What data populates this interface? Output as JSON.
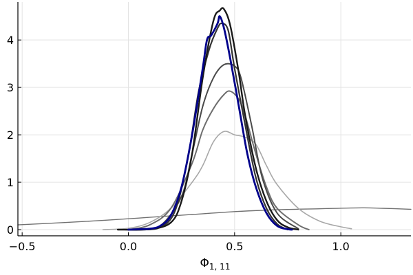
{
  "chart_data": {
    "type": "line",
    "title": "",
    "xlabel": "Φ",
    "xlabel_subscript": "1, 11",
    "ylabel": "",
    "xlim": [
      -0.52,
      1.33
    ],
    "ylim": [
      -0.13,
      4.8
    ],
    "grid": true,
    "legend": "none",
    "x_ticks": [
      {
        "value": -0.5,
        "label": "−0.5"
      },
      {
        "value": 0.0,
        "label": "0.0"
      },
      {
        "value": 0.5,
        "label": "0.5"
      },
      {
        "value": 1.0,
        "label": "1.0"
      }
    ],
    "y_ticks": [
      {
        "value": 0,
        "label": "0"
      },
      {
        "value": 1,
        "label": "1"
      },
      {
        "value": 2,
        "label": "2"
      },
      {
        "value": 3,
        "label": "3"
      },
      {
        "value": 4,
        "label": "4"
      }
    ],
    "series": [
      {
        "color": "#707070",
        "stroke_width": 1.4,
        "points": [
          [
            -0.52,
            0.1
          ],
          [
            -0.3,
            0.15
          ],
          [
            -0.1,
            0.2
          ],
          [
            0.1,
            0.26
          ],
          [
            0.3,
            0.32
          ],
          [
            0.5,
            0.38
          ],
          [
            0.7,
            0.42
          ],
          [
            0.9,
            0.44
          ],
          [
            1.1,
            0.46
          ],
          [
            1.2,
            0.45
          ],
          [
            1.33,
            0.43
          ]
        ]
      },
      {
        "color": "#a8a8a8",
        "stroke_width": 1.6,
        "points": [
          [
            -0.12,
            0.0
          ],
          [
            0.0,
            0.03
          ],
          [
            0.1,
            0.15
          ],
          [
            0.2,
            0.45
          ],
          [
            0.3,
            1.0
          ],
          [
            0.35,
            1.35
          ],
          [
            0.4,
            1.85
          ],
          [
            0.45,
            2.07
          ],
          [
            0.5,
            2.0
          ],
          [
            0.55,
            1.95
          ],
          [
            0.6,
            1.8
          ],
          [
            0.65,
            1.35
          ],
          [
            0.7,
            0.95
          ],
          [
            0.8,
            0.45
          ],
          [
            0.9,
            0.18
          ],
          [
            1.0,
            0.06
          ],
          [
            1.05,
            0.02
          ]
        ]
      },
      {
        "color": "#6e6e6e",
        "stroke_width": 2,
        "points": [
          [
            0.0,
            0.0
          ],
          [
            0.1,
            0.1
          ],
          [
            0.2,
            0.45
          ],
          [
            0.3,
            1.4
          ],
          [
            0.35,
            2.1
          ],
          [
            0.4,
            2.55
          ],
          [
            0.45,
            2.85
          ],
          [
            0.48,
            2.92
          ],
          [
            0.52,
            2.75
          ],
          [
            0.55,
            2.4
          ],
          [
            0.6,
            1.6
          ],
          [
            0.65,
            0.9
          ],
          [
            0.7,
            0.45
          ],
          [
            0.8,
            0.1
          ],
          [
            0.85,
            0.0
          ]
        ]
      },
      {
        "color": "#4a4a4a",
        "stroke_width": 2,
        "points": [
          [
            0.05,
            0.0
          ],
          [
            0.15,
            0.08
          ],
          [
            0.25,
            0.7
          ],
          [
            0.3,
            1.6
          ],
          [
            0.35,
            2.6
          ],
          [
            0.4,
            3.2
          ],
          [
            0.45,
            3.48
          ],
          [
            0.5,
            3.45
          ],
          [
            0.53,
            3.2
          ],
          [
            0.58,
            2.2
          ],
          [
            0.63,
            1.1
          ],
          [
            0.7,
            0.35
          ],
          [
            0.8,
            0.02
          ]
        ]
      },
      {
        "color": "#333333",
        "stroke_width": 2.2,
        "points": [
          [
            0.05,
            0.0
          ],
          [
            0.15,
            0.05
          ],
          [
            0.22,
            0.4
          ],
          [
            0.28,
            1.5
          ],
          [
            0.33,
            2.9
          ],
          [
            0.38,
            3.8
          ],
          [
            0.42,
            4.25
          ],
          [
            0.44,
            4.35
          ],
          [
            0.47,
            4.2
          ],
          [
            0.5,
            3.4
          ],
          [
            0.55,
            2.2
          ],
          [
            0.6,
            1.1
          ],
          [
            0.65,
            0.45
          ],
          [
            0.7,
            0.12
          ],
          [
            0.75,
            0.0
          ]
        ]
      },
      {
        "color": "#1a1a1a",
        "stroke_width": 2.4,
        "points": [
          [
            -0.05,
            0.0
          ],
          [
            0.1,
            0.01
          ],
          [
            0.2,
            0.15
          ],
          [
            0.25,
            0.6
          ],
          [
            0.3,
            1.6
          ],
          [
            0.35,
            3.2
          ],
          [
            0.4,
            4.4
          ],
          [
            0.43,
            4.62
          ],
          [
            0.45,
            4.65
          ],
          [
            0.48,
            4.3
          ],
          [
            0.52,
            3.3
          ],
          [
            0.55,
            2.4
          ],
          [
            0.6,
            1.3
          ],
          [
            0.65,
            0.6
          ],
          [
            0.7,
            0.2
          ],
          [
            0.75,
            0.05
          ],
          [
            0.8,
            0.0
          ]
        ]
      },
      {
        "color": "#00008b",
        "stroke_width": 2.8,
        "points": [
          [
            0.0,
            0.0
          ],
          [
            0.1,
            0.02
          ],
          [
            0.15,
            0.08
          ],
          [
            0.2,
            0.3
          ],
          [
            0.25,
            0.9
          ],
          [
            0.3,
            2.0
          ],
          [
            0.35,
            3.4
          ],
          [
            0.37,
            4.0
          ],
          [
            0.39,
            4.1
          ],
          [
            0.42,
            4.35
          ],
          [
            0.43,
            4.5
          ],
          [
            0.45,
            4.25
          ],
          [
            0.48,
            3.6
          ],
          [
            0.52,
            2.6
          ],
          [
            0.56,
            1.6
          ],
          [
            0.6,
            0.9
          ],
          [
            0.65,
            0.35
          ],
          [
            0.7,
            0.08
          ],
          [
            0.75,
            0.01
          ],
          [
            0.77,
            0.0
          ]
        ]
      }
    ]
  }
}
